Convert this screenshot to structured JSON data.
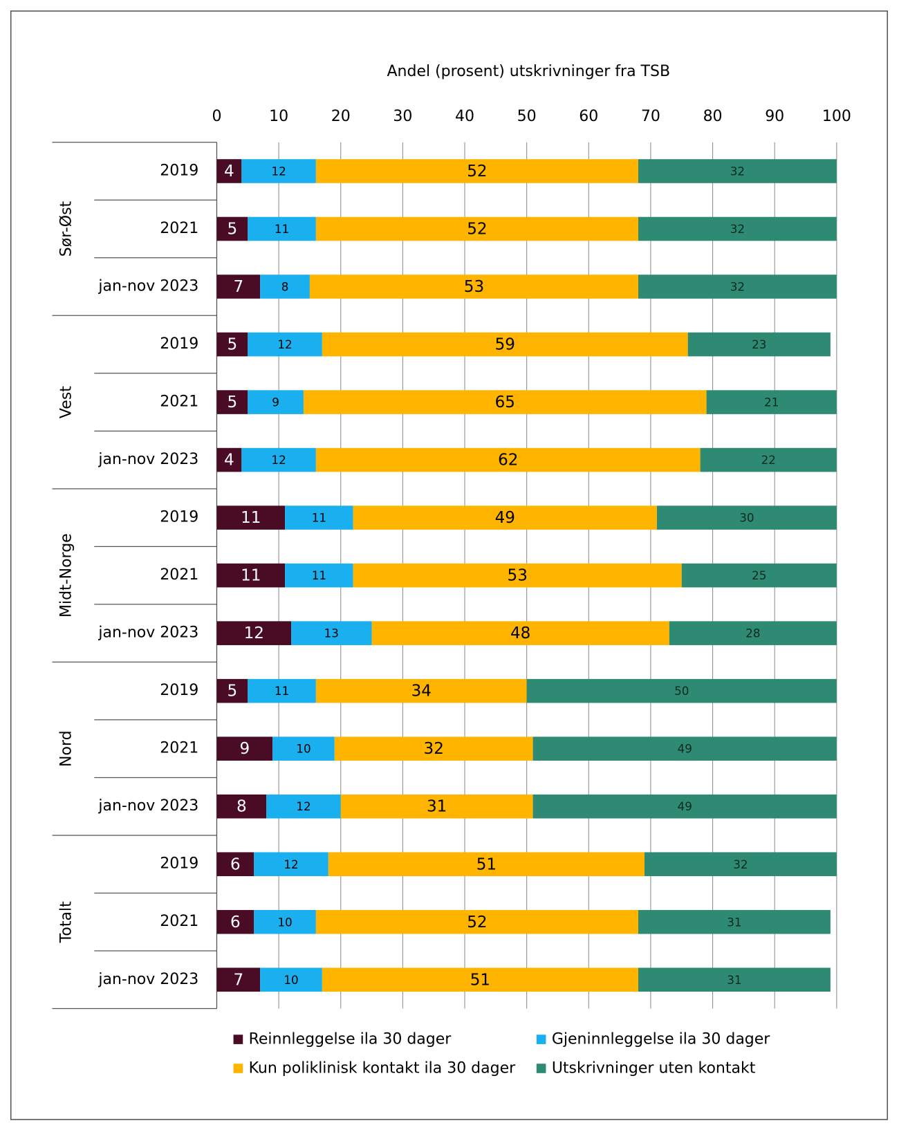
{
  "chart_data": {
    "type": "stacked-bar-horizontal",
    "title": "Andel (prosent)  utskrivninger fra TSB",
    "groups": [
      "Sør-Øst",
      "Vest",
      "Midt-Norge",
      "Nord",
      "Totalt"
    ],
    "categories": [
      "2019",
      "2021",
      "jan-nov 2023",
      "2019",
      "2021",
      "jan-nov 2023",
      "2019",
      "2021",
      "jan-nov 2023",
      "2019",
      "2021",
      "jan-nov 2023",
      "2019",
      "2021",
      "jan-nov 2023"
    ],
    "series": [
      {
        "name": "Reinnleggelse ila 30 dager",
        "color": "#4a0c24",
        "values": [
          4,
          5,
          7,
          5,
          5,
          4,
          11,
          11,
          12,
          5,
          9,
          8,
          6,
          6,
          7
        ]
      },
      {
        "name": "Gjeninnleggelse ila 30 dager",
        "color": "#1ab0ef",
        "values": [
          12,
          11,
          8,
          12,
          9,
          12,
          11,
          11,
          13,
          11,
          10,
          12,
          12,
          10,
          10
        ]
      },
      {
        "name": "Kun poliklinisk kontakt ila 30 dager",
        "color": "#ffb400",
        "values": [
          52,
          52,
          53,
          59,
          65,
          62,
          49,
          53,
          48,
          34,
          32,
          31,
          51,
          52,
          51
        ]
      },
      {
        "name": "Utskrivninger uten kontakt",
        "color": "#2e8a72",
        "values": [
          32,
          32,
          32,
          23,
          21,
          22,
          30,
          25,
          28,
          50,
          49,
          49,
          32,
          31,
          31
        ]
      }
    ],
    "xlim": [
      0,
      100
    ],
    "xticks": [
      0,
      10,
      20,
      30,
      40,
      50,
      60,
      70,
      80,
      90,
      100
    ],
    "grid": true
  }
}
